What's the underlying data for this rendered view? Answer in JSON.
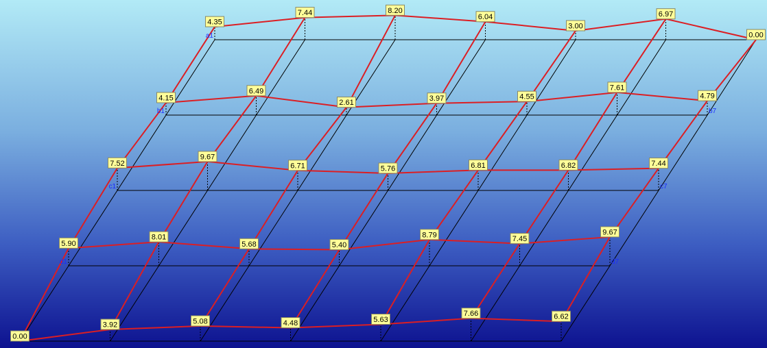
{
  "colors": {
    "profile_line": "#dc1e23",
    "grid_line": "#000000",
    "label_fill": "#ffff99",
    "row_tag": "#1a2cff"
  },
  "rows": [
    {
      "id": "a",
      "start_label": "a1",
      "end_label": "",
      "values": [
        "4.35",
        "7.44",
        "8.20",
        "6.04",
        "3.00",
        "6.97",
        "0.00"
      ]
    },
    {
      "id": "b",
      "start_label": "b1",
      "end_label": "b7",
      "values": [
        "4.15",
        "6.49",
        "2.61",
        "3.97",
        "4.55",
        "7.61",
        "4.79"
      ]
    },
    {
      "id": "c",
      "start_label": "c1",
      "end_label": "c7",
      "values": [
        "7.52",
        "9.67",
        "6.71",
        "5.76",
        "6.81",
        "6.82",
        "7.44"
      ]
    },
    {
      "id": "d",
      "start_label": "d1",
      "end_label": "d7",
      "values": [
        "5.90",
        "8.01",
        "5.68",
        "5.40",
        "8.79",
        "7.45",
        "9.67"
      ]
    },
    {
      "id": "e",
      "start_label": "",
      "end_label": "",
      "values": [
        "0.00",
        "3.92",
        "5.08",
        "4.48",
        "5.63",
        "7.66",
        "6.62"
      ]
    }
  ]
}
